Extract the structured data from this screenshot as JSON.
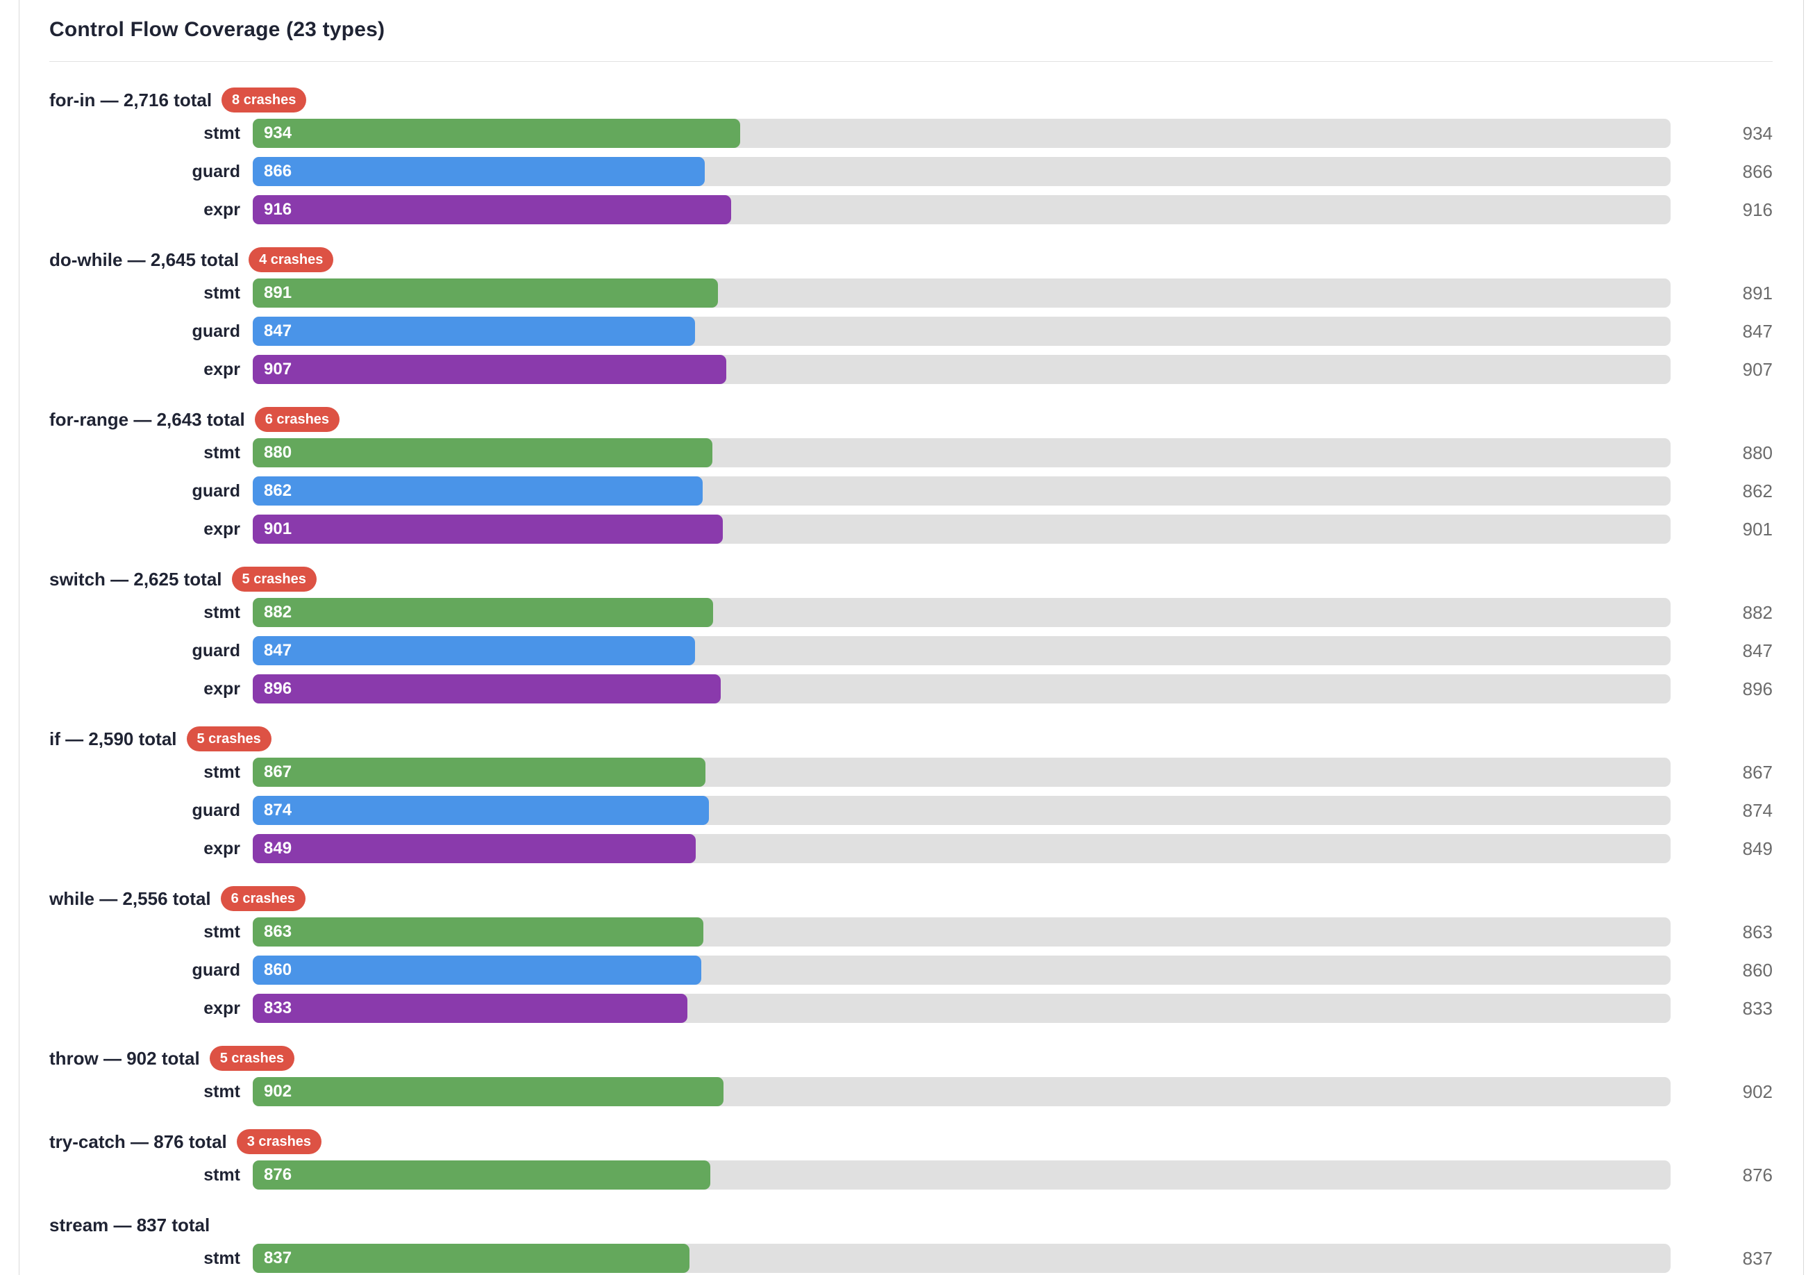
{
  "page": {
    "title": "Control Flow Coverage (23 types)"
  },
  "colors": {
    "stmt": "#64a85c",
    "guard": "#4a94e8",
    "expr": "#8a3aac",
    "badge": "#dd5244",
    "track": "#e0e0e0",
    "heading_text": "#1f2333",
    "right_value_text": "#6b6b6b",
    "bar_value_text": "#ffffff"
  },
  "chart_data": {
    "type": "bar",
    "orientation": "horizontal",
    "title": "Control Flow Coverage (23 types)",
    "xlim": [
      0,
      2716
    ],
    "grid": false,
    "metrics": [
      "stmt",
      "guard",
      "expr"
    ],
    "groups": [
      {
        "name": "for-in",
        "total": 2716,
        "header_label": "for-in — 2,716 total",
        "crashes": 8,
        "crashes_label": "8 crashes",
        "bars": [
          {
            "label": "stmt",
            "value": 934
          },
          {
            "label": "guard",
            "value": 866
          },
          {
            "label": "expr",
            "value": 916
          }
        ]
      },
      {
        "name": "do-while",
        "total": 2645,
        "header_label": "do-while — 2,645 total",
        "crashes": 4,
        "crashes_label": "4 crashes",
        "bars": [
          {
            "label": "stmt",
            "value": 891
          },
          {
            "label": "guard",
            "value": 847
          },
          {
            "label": "expr",
            "value": 907
          }
        ]
      },
      {
        "name": "for-range",
        "total": 2643,
        "header_label": "for-range — 2,643 total",
        "crashes": 6,
        "crashes_label": "6 crashes",
        "bars": [
          {
            "label": "stmt",
            "value": 880
          },
          {
            "label": "guard",
            "value": 862
          },
          {
            "label": "expr",
            "value": 901
          }
        ]
      },
      {
        "name": "switch",
        "total": 2625,
        "header_label": "switch — 2,625 total",
        "crashes": 5,
        "crashes_label": "5 crashes",
        "bars": [
          {
            "label": "stmt",
            "value": 882
          },
          {
            "label": "guard",
            "value": 847
          },
          {
            "label": "expr",
            "value": 896
          }
        ]
      },
      {
        "name": "if",
        "total": 2590,
        "header_label": "if — 2,590 total",
        "crashes": 5,
        "crashes_label": "5 crashes",
        "bars": [
          {
            "label": "stmt",
            "value": 867
          },
          {
            "label": "guard",
            "value": 874
          },
          {
            "label": "expr",
            "value": 849
          }
        ]
      },
      {
        "name": "while",
        "total": 2556,
        "header_label": "while — 2,556 total",
        "crashes": 6,
        "crashes_label": "6 crashes",
        "bars": [
          {
            "label": "stmt",
            "value": 863
          },
          {
            "label": "guard",
            "value": 860
          },
          {
            "label": "expr",
            "value": 833
          }
        ]
      },
      {
        "name": "throw",
        "total": 902,
        "header_label": "throw — 902 total",
        "crashes": 5,
        "crashes_label": "5 crashes",
        "bars": [
          {
            "label": "stmt",
            "value": 902
          }
        ]
      },
      {
        "name": "try-catch",
        "total": 876,
        "header_label": "try-catch — 876 total",
        "crashes": 3,
        "crashes_label": "3 crashes",
        "bars": [
          {
            "label": "stmt",
            "value": 876
          }
        ]
      },
      {
        "name": "stream",
        "total": 837,
        "header_label": "stream — 837 total",
        "crashes": null,
        "crashes_label": null,
        "bars": [
          {
            "label": "stmt",
            "value": 837
          }
        ]
      }
    ]
  }
}
